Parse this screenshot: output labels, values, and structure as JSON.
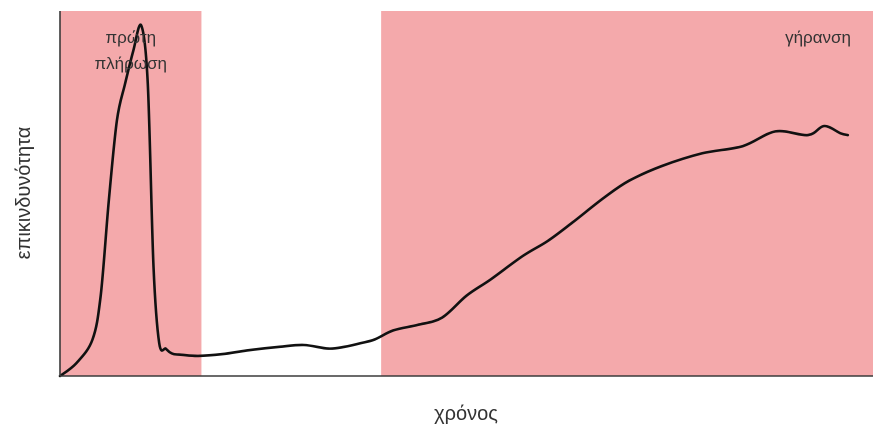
{
  "chart_data": {
    "type": "line",
    "title": "",
    "xlabel": "χρόνος",
    "ylabel": "επικινδυνότητα",
    "xlim": [
      0,
      100
    ],
    "ylim": [
      0,
      100
    ],
    "grid": false,
    "legend": "none",
    "regions": [
      {
        "label_lines": [
          "πρώτη",
          "πλήρωση"
        ],
        "x_start": 0,
        "x_end": 17.4,
        "color": "#f4a9ab",
        "label_align": "middle"
      },
      {
        "label_lines": [],
        "x_start": 17.4,
        "x_end": 39.5,
        "color": "#ffffff",
        "label_align": "middle"
      },
      {
        "label_lines": [
          "γήρανση"
        ],
        "x_start": 39.5,
        "x_end": 100,
        "color": "#f4a9ab",
        "label_align": "end"
      }
    ],
    "series": [
      {
        "color": "#111111",
        "x": [
          0,
          2,
          4,
          5,
          6,
          7,
          8,
          9,
          10,
          10.8,
          11.5,
          12.2,
          13,
          13.5,
          14,
          15,
          17,
          20,
          23,
          27,
          30,
          33,
          35,
          37,
          38.7,
          41,
          44,
          47,
          50,
          53,
          57,
          60,
          63,
          67,
          70,
          74,
          79,
          84,
          88,
          92,
          94,
          96,
          96.9
        ],
        "y": [
          0,
          3.5,
          10,
          22,
          48,
          70,
          80,
          89,
          96,
          80,
          30,
          9,
          7.5,
          6.5,
          6,
          5.8,
          5.5,
          6,
          7,
          8,
          8.5,
          7.5,
          8,
          9,
          10,
          12.5,
          14,
          16,
          22,
          26.5,
          33,
          37,
          42,
          49,
          53.5,
          57.5,
          61,
          63,
          67,
          66,
          68.5,
          66.5,
          66
        ]
      }
    ]
  }
}
